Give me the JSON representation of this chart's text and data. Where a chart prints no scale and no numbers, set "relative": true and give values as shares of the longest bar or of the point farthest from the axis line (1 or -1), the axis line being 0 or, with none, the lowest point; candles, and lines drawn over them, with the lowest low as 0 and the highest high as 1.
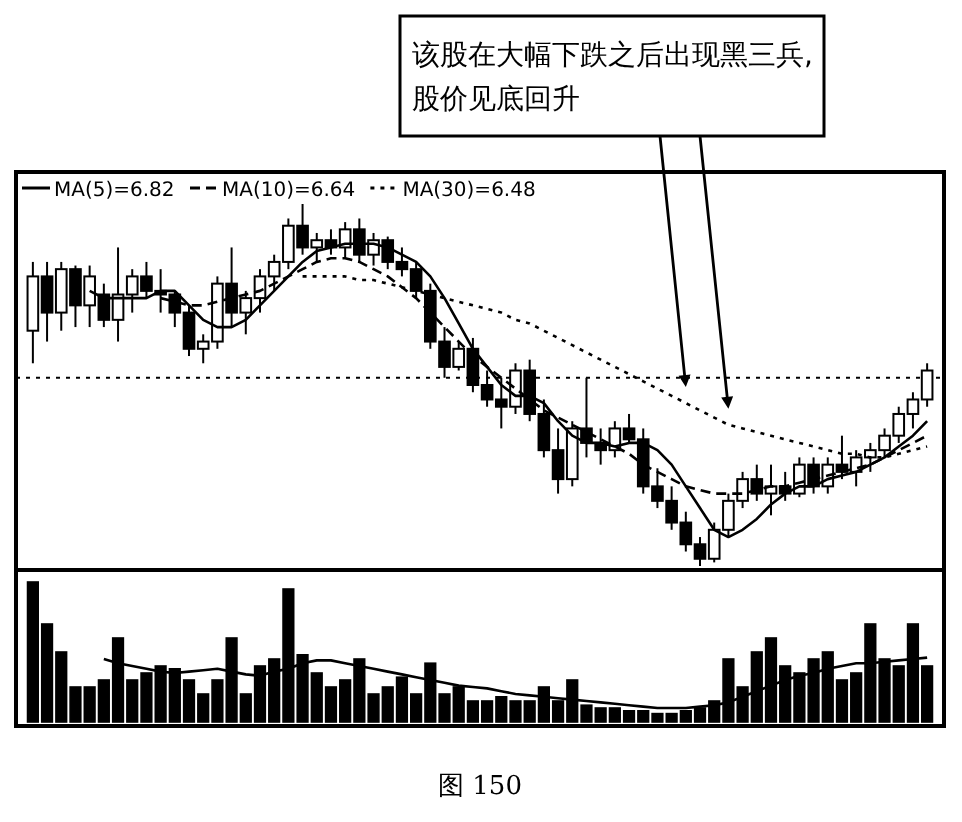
{
  "chart_data": [
    {
      "type": "candlestick",
      "relative": true,
      "categories": [
        null,
        null,
        null,
        null,
        null,
        null,
        null,
        null,
        null,
        null,
        null,
        null,
        null,
        null,
        null,
        null,
        null,
        null,
        null,
        null,
        null,
        null,
        null,
        null,
        null,
        null,
        null,
        null,
        null,
        null,
        null,
        null,
        null,
        null,
        null,
        null,
        null,
        null,
        null,
        null,
        null,
        null,
        null,
        null,
        null,
        null,
        null,
        null,
        null,
        null,
        null,
        null,
        null,
        null,
        null,
        null,
        null,
        null,
        null,
        null,
        null,
        null,
        null,
        null
      ],
      "ohlc": [
        [
          0.65,
          0.84,
          0.56,
          0.8
        ],
        [
          0.8,
          0.84,
          0.62,
          0.7
        ],
        [
          0.7,
          0.84,
          0.65,
          0.82
        ],
        [
          0.82,
          0.83,
          0.66,
          0.72
        ],
        [
          0.72,
          0.83,
          0.66,
          0.8
        ],
        [
          0.75,
          0.78,
          0.66,
          0.68
        ],
        [
          0.68,
          0.88,
          0.62,
          0.75
        ],
        [
          0.75,
          0.82,
          0.7,
          0.8
        ],
        [
          0.8,
          0.84,
          0.74,
          0.76
        ],
        [
          0.76,
          0.82,
          0.7,
          0.75
        ],
        [
          0.75,
          0.76,
          0.66,
          0.7
        ],
        [
          0.7,
          0.72,
          0.58,
          0.6
        ],
        [
          0.6,
          0.64,
          0.56,
          0.62
        ],
        [
          0.62,
          0.8,
          0.6,
          0.78
        ],
        [
          0.78,
          0.88,
          0.66,
          0.7
        ],
        [
          0.7,
          0.76,
          0.64,
          0.74
        ],
        [
          0.74,
          0.82,
          0.7,
          0.8
        ],
        [
          0.8,
          0.86,
          0.76,
          0.84
        ],
        [
          0.84,
          0.96,
          0.82,
          0.94
        ],
        [
          0.94,
          1.0,
          0.86,
          0.88
        ],
        [
          0.88,
          0.92,
          0.84,
          0.9
        ],
        [
          0.9,
          0.93,
          0.86,
          0.88
        ],
        [
          0.88,
          0.95,
          0.85,
          0.93
        ],
        [
          0.93,
          0.96,
          0.84,
          0.86
        ],
        [
          0.86,
          0.92,
          0.83,
          0.9
        ],
        [
          0.9,
          0.91,
          0.82,
          0.84
        ],
        [
          0.84,
          0.88,
          0.8,
          0.82
        ],
        [
          0.82,
          0.84,
          0.74,
          0.76
        ],
        [
          0.76,
          0.78,
          0.6,
          0.62
        ],
        [
          0.62,
          0.66,
          0.52,
          0.55
        ],
        [
          0.55,
          0.62,
          0.54,
          0.6
        ],
        [
          0.6,
          0.63,
          0.48,
          0.5
        ],
        [
          0.5,
          0.54,
          0.44,
          0.46
        ],
        [
          0.46,
          0.52,
          0.38,
          0.44
        ],
        [
          0.44,
          0.56,
          0.42,
          0.54
        ],
        [
          0.54,
          0.57,
          0.4,
          0.42
        ],
        [
          0.42,
          0.46,
          0.3,
          0.32
        ],
        [
          0.32,
          0.38,
          0.2,
          0.24
        ],
        [
          0.24,
          0.4,
          0.22,
          0.38
        ],
        [
          0.38,
          0.52,
          0.3,
          0.34
        ],
        [
          0.34,
          0.38,
          0.28,
          0.32
        ],
        [
          0.32,
          0.4,
          0.3,
          0.38
        ],
        [
          0.38,
          0.42,
          0.34,
          0.35
        ],
        [
          0.35,
          0.38,
          0.2,
          0.22
        ],
        [
          0.22,
          0.27,
          0.16,
          0.18
        ],
        [
          0.18,
          0.22,
          0.1,
          0.12
        ],
        [
          0.12,
          0.15,
          0.04,
          0.06
        ],
        [
          0.06,
          0.08,
          0.0,
          0.02
        ],
        [
          0.02,
          0.12,
          0.01,
          0.1
        ],
        [
          0.1,
          0.2,
          0.08,
          0.18
        ],
        [
          0.18,
          0.26,
          0.16,
          0.24
        ],
        [
          0.24,
          0.28,
          0.18,
          0.2
        ],
        [
          0.2,
          0.28,
          0.14,
          0.22
        ],
        [
          0.22,
          0.26,
          0.18,
          0.2
        ],
        [
          0.2,
          0.3,
          0.19,
          0.28
        ],
        [
          0.28,
          0.3,
          0.2,
          0.22
        ],
        [
          0.22,
          0.3,
          0.2,
          0.28
        ],
        [
          0.28,
          0.36,
          0.24,
          0.26
        ],
        [
          0.26,
          0.32,
          0.22,
          0.3
        ],
        [
          0.3,
          0.34,
          0.26,
          0.32
        ],
        [
          0.32,
          0.38,
          0.3,
          0.36
        ],
        [
          0.36,
          0.44,
          0.34,
          0.42
        ],
        [
          0.42,
          0.48,
          0.38,
          0.46
        ],
        [
          0.46,
          0.56,
          0.44,
          0.54
        ]
      ],
      "series": [
        {
          "type": "line",
          "name": "MA(5)=6.82",
          "color": "#000000",
          "line_style": "solid",
          "values": [
            null,
            null,
            null,
            null,
            0.76,
            0.74,
            0.74,
            0.74,
            0.74,
            0.76,
            0.76,
            0.72,
            0.68,
            0.66,
            0.66,
            0.68,
            0.72,
            0.76,
            0.8,
            0.84,
            0.87,
            0.88,
            0.89,
            0.89,
            0.89,
            0.88,
            0.86,
            0.84,
            0.8,
            0.74,
            0.67,
            0.6,
            0.55,
            0.5,
            0.47,
            0.47,
            0.45,
            0.4,
            0.36,
            0.34,
            0.34,
            0.33,
            0.34,
            0.34,
            0.32,
            0.28,
            0.22,
            0.16,
            0.1,
            0.08,
            0.1,
            0.13,
            0.17,
            0.2,
            0.22,
            0.22,
            0.24,
            0.25,
            0.26,
            0.28,
            0.3,
            0.33,
            0.36,
            0.4
          ]
        },
        {
          "type": "line",
          "name": "MA(10)=6.64",
          "color": "#000000",
          "line_style": "dashed",
          "values": [
            null,
            null,
            null,
            null,
            null,
            null,
            null,
            null,
            null,
            0.74,
            0.73,
            0.72,
            0.72,
            0.73,
            0.74,
            0.75,
            0.76,
            0.78,
            0.8,
            0.82,
            0.84,
            0.85,
            0.85,
            0.84,
            0.82,
            0.8,
            0.77,
            0.74,
            0.7,
            0.66,
            0.62,
            0.58,
            0.55,
            0.52,
            0.49,
            0.46,
            0.43,
            0.41,
            0.39,
            0.37,
            0.35,
            0.33,
            0.31,
            0.28,
            0.26,
            0.24,
            0.22,
            0.21,
            0.2,
            0.2,
            0.2,
            0.21,
            0.22,
            0.22,
            0.23,
            0.24,
            0.25,
            0.26,
            0.27,
            0.28,
            0.3,
            0.32,
            0.34,
            0.36
          ]
        },
        {
          "type": "line",
          "name": "MA(30)=6.48",
          "color": "#000000",
          "line_style": "dotted",
          "values": [
            null,
            null,
            null,
            null,
            null,
            null,
            null,
            null,
            null,
            null,
            null,
            null,
            null,
            null,
            null,
            null,
            null,
            null,
            null,
            0.8,
            0.8,
            0.8,
            0.8,
            0.79,
            0.79,
            0.78,
            0.77,
            0.76,
            0.75,
            0.74,
            0.73,
            0.72,
            0.71,
            0.7,
            0.68,
            0.67,
            0.65,
            0.63,
            0.61,
            0.59,
            0.57,
            0.55,
            0.53,
            0.51,
            0.49,
            0.47,
            0.45,
            0.43,
            0.41,
            0.39,
            0.38,
            0.37,
            0.36,
            0.35,
            0.34,
            0.33,
            0.32,
            0.31,
            0.31,
            0.3,
            0.3,
            0.31,
            0.32,
            0.33
          ]
        }
      ],
      "ref_lines": [
        {
          "axis": "y",
          "value": 0.52,
          "line_style": "dotted"
        }
      ],
      "annotations": [
        "该股在大幅下跌之后出现黑三兵,\n股价见底回升"
      ],
      "legend": "top left"
    },
    {
      "type": "bar",
      "relative": true,
      "color": "#000000",
      "categories": [
        null,
        null,
        null,
        null,
        null,
        null,
        null,
        null,
        null,
        null,
        null,
        null,
        null,
        null,
        null,
        null,
        null,
        null,
        null,
        null,
        null,
        null,
        null,
        null,
        null,
        null,
        null,
        null,
        null,
        null,
        null,
        null,
        null,
        null,
        null,
        null,
        null,
        null,
        null,
        null,
        null,
        null,
        null,
        null,
        null,
        null,
        null,
        null,
        null,
        null,
        null,
        null,
        null,
        null,
        null,
        null,
        null,
        null,
        null,
        null,
        null,
        null,
        null,
        null
      ],
      "values": [
        1.0,
        0.7,
        0.5,
        0.25,
        0.25,
        0.3,
        0.6,
        0.3,
        0.35,
        0.4,
        0.38,
        0.3,
        0.2,
        0.3,
        0.6,
        0.2,
        0.4,
        0.45,
        0.95,
        0.48,
        0.35,
        0.25,
        0.3,
        0.45,
        0.2,
        0.25,
        0.32,
        0.2,
        0.42,
        0.2,
        0.25,
        0.15,
        0.15,
        0.18,
        0.15,
        0.15,
        0.25,
        0.15,
        0.3,
        0.12,
        0.1,
        0.1,
        0.08,
        0.08,
        0.06,
        0.06,
        0.08,
        0.1,
        0.15,
        0.45,
        0.25,
        0.5,
        0.6,
        0.4,
        0.35,
        0.45,
        0.5,
        0.3,
        0.35,
        0.7,
        0.45,
        0.4,
        0.7,
        0.4
      ],
      "series": [
        {
          "type": "line",
          "color": "#000000",
          "line_style": "solid",
          "values": [
            null,
            null,
            null,
            null,
            null,
            0.45,
            0.42,
            0.4,
            0.38,
            0.36,
            0.35,
            0.36,
            0.37,
            0.38,
            0.36,
            0.34,
            0.33,
            0.36,
            0.38,
            0.42,
            0.44,
            0.44,
            0.42,
            0.4,
            0.38,
            0.36,
            0.34,
            0.32,
            0.3,
            0.28,
            0.26,
            0.25,
            0.24,
            0.22,
            0.2,
            0.19,
            0.18,
            0.17,
            0.16,
            0.15,
            0.14,
            0.13,
            0.12,
            0.11,
            0.1,
            0.1,
            0.1,
            0.11,
            0.12,
            0.14,
            0.18,
            0.22,
            0.26,
            0.3,
            0.33,
            0.35,
            0.38,
            0.4,
            0.42,
            0.42,
            0.43,
            0.44,
            0.45,
            0.46
          ]
        }
      ],
      "annotations": [
        "图 150"
      ]
    }
  ]
}
